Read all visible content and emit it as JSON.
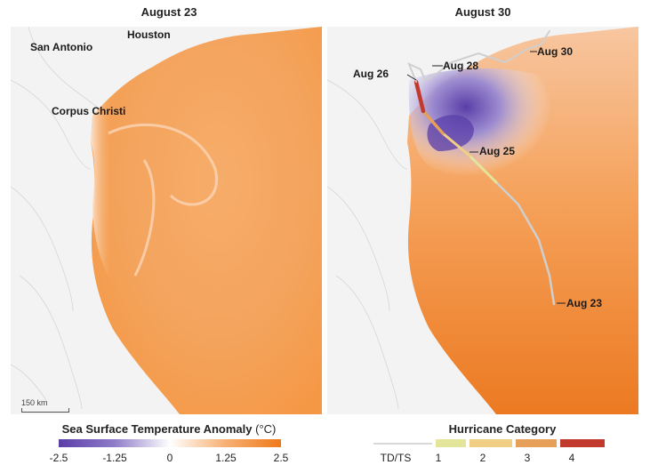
{
  "panels": {
    "left": {
      "title": "August 23"
    },
    "right": {
      "title": "August 30"
    }
  },
  "cities": [
    {
      "name": "San Antonio"
    },
    {
      "name": "Houston"
    },
    {
      "name": "Corpus Christi"
    }
  ],
  "track_labels": [
    {
      "label": "Aug 26"
    },
    {
      "label": "Aug 28"
    },
    {
      "label": "Aug 30"
    },
    {
      "label": "Aug 25"
    },
    {
      "label": "Aug 23"
    }
  ],
  "scale_bar": {
    "label": "150 km"
  },
  "sst_legend": {
    "title": "Sea Surface Temperature Anomaly",
    "unit": "(°C)",
    "ticks": [
      "-2.5",
      "-1.25",
      "0",
      "1.25",
      "2.5"
    ],
    "colors": {
      "cold": "#5a3ea8",
      "neutral": "#ffffff",
      "warm": "#ef7a1a"
    }
  },
  "hurricane_legend": {
    "title": "Hurricane Category",
    "categories": [
      {
        "label": "TD/TS",
        "color": "#d9d9d9"
      },
      {
        "label": "1",
        "color": "#e3e69a"
      },
      {
        "label": "2",
        "color": "#f0cf84"
      },
      {
        "label": "3",
        "color": "#e6a05a"
      },
      {
        "label": "4",
        "color": "#c23a2e"
      }
    ]
  }
}
